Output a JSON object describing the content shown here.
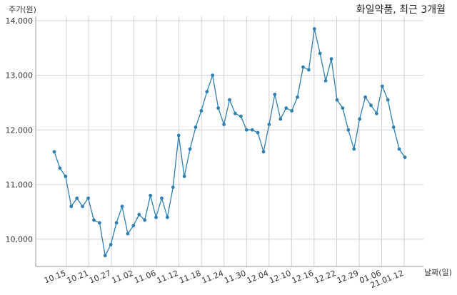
{
  "chart_data": {
    "type": "line",
    "title": "화일약품, 최근 3개월",
    "ylabel": "주가(원)",
    "xlabel": "날짜(일)",
    "ylim": [
      9500,
      14000
    ],
    "yticks": [
      10000,
      11000,
      12000,
      13000,
      14000
    ],
    "ytick_labels": [
      "10,000",
      "11,000",
      "12,000",
      "13,000",
      "14,000"
    ],
    "xtick_labels": [
      "10.15",
      "10.21",
      "10.27",
      "11.02",
      "11.06",
      "11.12",
      "11.18",
      "11.24",
      "11.30",
      "12.04",
      "12.10",
      "12.16",
      "12.22",
      "12.29",
      "01.06",
      "21.01.12"
    ],
    "grid": true,
    "color": "#2f7fb0",
    "values": [
      11600,
      11300,
      11150,
      10600,
      10750,
      10600,
      10750,
      10350,
      10300,
      9700,
      9900,
      10300,
      10600,
      10100,
      10250,
      10450,
      10350,
      10800,
      10400,
      10750,
      10400,
      10950,
      11900,
      11150,
      11650,
      12050,
      12350,
      12700,
      13000,
      12400,
      12100,
      12550,
      12300,
      12250,
      12000,
      12000,
      11950,
      11600,
      12100,
      12650,
      12200,
      12400,
      12350,
      12600,
      13150,
      13100,
      13850,
      13400,
      12900,
      13300,
      12550,
      12400,
      12000,
      11650,
      12200,
      12600,
      12450,
      12300,
      12800,
      12550,
      12050,
      11650,
      11500
    ]
  }
}
